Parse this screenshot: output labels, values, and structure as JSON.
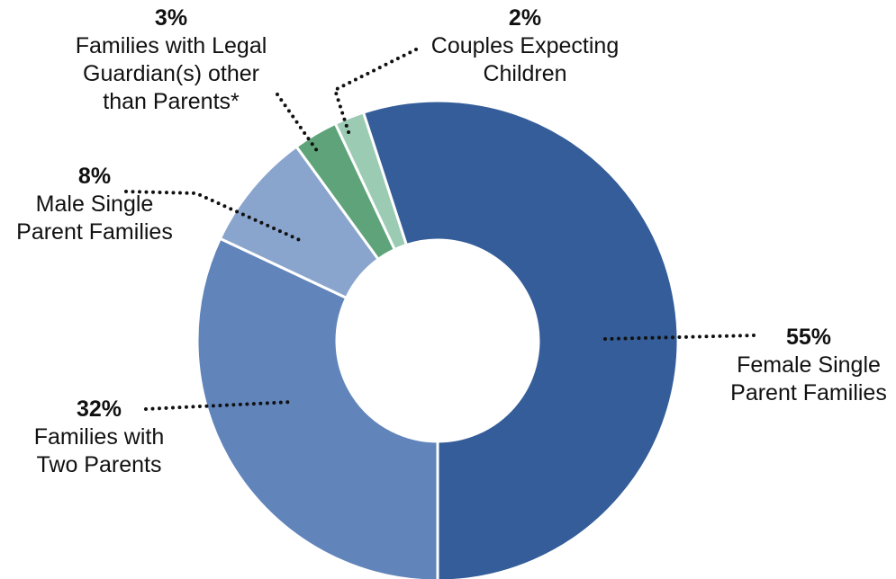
{
  "chart_data": {
    "type": "donut",
    "categories": [
      "Female Single Parent Families",
      "Families with Two Parents",
      "Male Single Parent Families",
      "Families with Legal Guardian(s) other than Parents*",
      "Couples Expecting Children"
    ],
    "values": [
      55,
      32,
      8,
      3,
      2
    ],
    "value_labels": [
      "55%",
      "32%",
      "8%",
      "3%",
      "2%"
    ],
    "colors": [
      "#345d99",
      "#6184ba",
      "#8aa5cd",
      "#5ea37a",
      "#9ccbb4"
    ]
  }
}
